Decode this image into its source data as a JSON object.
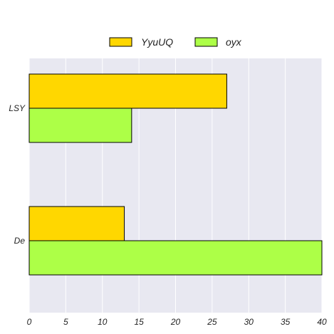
{
  "chart_data": {
    "type": "bar",
    "orientation": "horizontal",
    "categories": [
      "LSY",
      "De"
    ],
    "series": [
      {
        "name": "YyuUQ",
        "values": [
          27,
          13
        ],
        "color": "#FFD700"
      },
      {
        "name": "oyx",
        "values": [
          14,
          40
        ],
        "color": "#ADFF47"
      }
    ],
    "title": "",
    "xlabel": "",
    "ylabel": "",
    "xlim": [
      0,
      40
    ],
    "xticks": [
      0,
      5,
      10,
      15,
      20,
      25,
      30,
      35,
      40
    ],
    "grid": true,
    "legend_position": "top-center",
    "background_color": "#E8E8F1",
    "grid_color": "#FFFFFF",
    "edge_color": "#000000"
  }
}
